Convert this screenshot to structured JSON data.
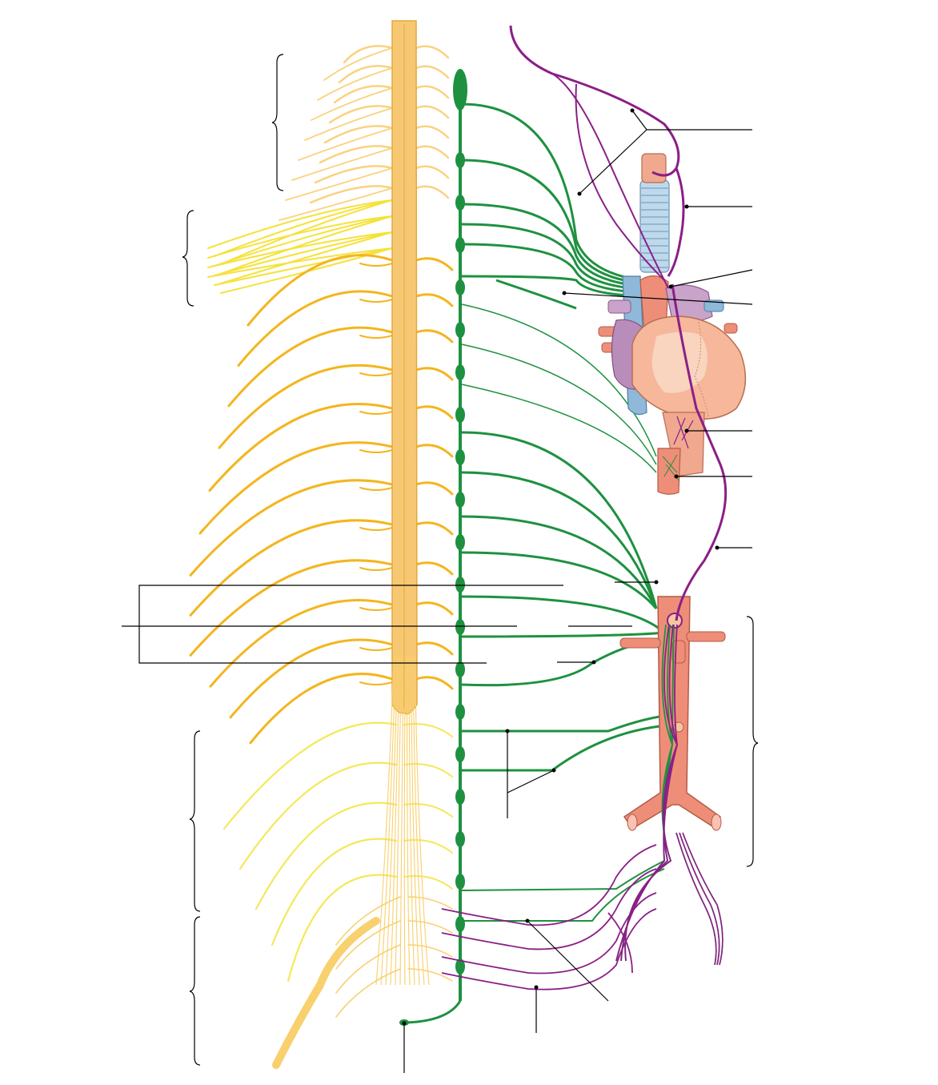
{
  "diagram": {
    "colors": {
      "spinal_cord": "#F7C873",
      "spinal_cord_edge": "#E5A83A",
      "cervical_nerves": "#FAD27F",
      "brachial_nerves": "#F5E23A",
      "thoracic_nerves": "#F4B51E",
      "lumbar_nerves": "#F5E85A",
      "sacral_nerves": "#F8D06E",
      "sympathetic_chain": "#1E9140",
      "vagus_nerve": "#8B1F87",
      "pelvic_splanchnic": "#8B1F87",
      "heart": "#F6B79A",
      "heart_shadow": "#E8A080",
      "atria": "#C9A3C9",
      "vena_cava": "#8FB8D9",
      "aorta": "#EE8E79",
      "trachea": "#BFD9EC",
      "esophagus": "#F0A98F"
    },
    "icons": [
      "brace-marker",
      "leader-line",
      "ganglion-node"
    ]
  }
}
